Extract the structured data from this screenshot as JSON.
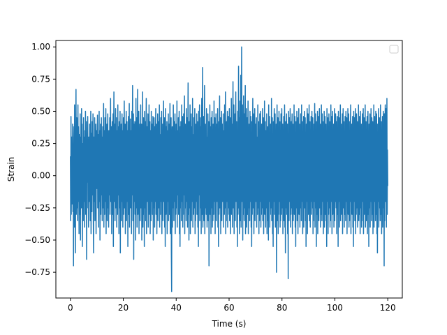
{
  "chart_data": {
    "type": "line",
    "title": "",
    "xlabel": "Time (s)",
    "ylabel": "Strain",
    "xlim": [
      -5.5,
      125.5
    ],
    "ylim": [
      -0.95,
      1.05
    ],
    "xticks": [
      0,
      20,
      40,
      60,
      80,
      100,
      120
    ],
    "yticks": [
      -0.75,
      -0.5,
      -0.25,
      0.0,
      0.25,
      0.5,
      0.75,
      1.0
    ],
    "ytick_labels": [
      "−0.75",
      "−0.50",
      "−0.25",
      "0.00",
      "0.25",
      "0.50",
      "0.75",
      "1.00"
    ],
    "grid": false,
    "legend": {
      "placement": "top-right",
      "entries": []
    },
    "series": [
      {
        "color": "#1f77b4",
        "sample_interval": 0.5,
        "x_start": 0,
        "x_end": 120,
        "y": [
          0.15,
          -0.35,
          0.46,
          -0.3,
          0.05,
          0.3,
          -0.22,
          0.12,
          0.4,
          -0.28,
          0.15,
          -0.7,
          0.25,
          0.38,
          -0.4,
          0.55,
          -0.15,
          0.2,
          -0.6,
          0.35,
          0.67,
          -0.3,
          0.22,
          0.45,
          -0.25,
          0.1,
          -0.35,
          0.55,
          -0.2,
          0.38,
          0.05,
          -0.45,
          0.32,
          0.15,
          -0.3,
          0.48,
          -0.5,
          0.2,
          0.3,
          -0.25,
          0.52,
          -0.1,
          0.4,
          -0.55,
          0.25,
          0.15,
          -0.35,
          0.45,
          -0.2,
          0.3,
          0.08,
          -0.4,
          0.35,
          -0.15,
          0.5,
          -0.3,
          0.2,
          0.42,
          -0.65,
          0.28,
          -0.05,
          0.32,
          0.46,
          -0.25,
          0.15,
          -0.4,
          0.3,
          0.05,
          -0.2,
          0.4,
          0.18,
          -0.35,
          0.25,
          0.5,
          -0.45,
          0.1,
          0.33,
          -0.28,
          0.42,
          -0.15,
          0.2,
          0.48,
          -0.3,
          -0.6,
          0.3,
          0.15,
          -0.2,
          0.45,
          -0.35,
          0.28,
          0.05,
          0.4,
          -0.45,
          0.22,
          0.35,
          -0.1,
          0.3,
          0.47,
          -0.25,
          0.12,
          0.32,
          -0.4,
          0.25,
          0.5,
          -0.2,
          0.35,
          -0.5,
          0.15,
          0.4,
          -0.3,
          0.22,
          0.45,
          -0.15,
          0.3,
          -0.35,
          0.1,
          0.38,
          -0.25,
          0.28,
          0.56,
          -0.4,
          0.18,
          0.35,
          -0.3,
          0.45,
          -0.2,
          0.15,
          0.52,
          -0.45,
          0.25,
          0.05,
          0.4,
          -0.35,
          0.3,
          0.48,
          -0.25,
          0.15,
          -0.4,
          0.35,
          0.22,
          -0.15,
          0.45,
          -0.3,
          0.28,
          0.6,
          -0.2,
          0.1,
          0.38,
          -0.45,
          0.25,
          0.42,
          -0.3,
          0.18,
          0.48,
          -0.55,
          0.3,
          0.65,
          -0.2,
          0.15,
          0.4,
          -0.35,
          0.28,
          0.52,
          -0.25,
          0.12,
          0.45,
          -0.4,
          0.35,
          0.2,
          -0.3,
          0.55,
          -0.15,
          0.38,
          0.25,
          -0.45,
          0.42,
          0.15,
          -0.25,
          0.5,
          -0.6,
          0.3,
          0.08,
          0.4,
          -0.35,
          0.22,
          0.48,
          -0.2,
          0.35,
          -0.4,
          0.15,
          0.45,
          -0.3,
          0.28,
          0.58,
          -0.25,
          0.18,
          0.4,
          -0.45,
          0.3,
          0.12,
          0.5,
          -0.35,
          0.25,
          0.42,
          -0.2,
          0.35,
          -0.55,
          0.15,
          0.46,
          -0.3,
          0.22,
          0.56,
          -0.4,
          0.28,
          0.05,
          0.44,
          -0.25,
          0.35,
          0.2,
          -0.45,
          0.5,
          -0.15,
          0.3,
          0.7,
          -0.35,
          0.25,
          0.48,
          -0.65,
          0.4,
          -0.2,
          0.15,
          0.42,
          -0.3,
          0.35,
          -0.5,
          0.6,
          -0.25,
          0.22,
          0.45,
          -0.4,
          0.18,
          0.67,
          -0.3,
          0.32,
          -0.2,
          0.5,
          -0.45,
          0.28,
          0.1,
          0.4,
          -0.35,
          0.25,
          0.55,
          -0.25,
          0.2,
          0.4,
          -0.5,
          0.35,
          -0.15,
          0.65,
          -0.4,
          0.28,
          0.45,
          -0.3,
          0.22,
          -0.55,
          0.5,
          0.15,
          -0.25,
          0.42,
          -0.35,
          0.3,
          0.6,
          -0.45,
          0.25,
          0.38,
          -0.2,
          0.15,
          0.48,
          -0.4,
          0.3,
          -0.25,
          0.55,
          -0.3,
          0.2,
          0.42,
          -0.45,
          0.35,
          0.05,
          -0.35,
          0.5,
          -0.2,
          0.25,
          0.4,
          -0.3,
          0.15,
          0.46,
          -0.5,
          0.32,
          -0.25,
          0.45,
          0.12,
          -0.4,
          0.38,
          -0.2,
          0.28,
          0.52,
          -0.3,
          0.18,
          0.4,
          -0.45,
          0.25,
          -0.15,
          0.48,
          -0.35,
          0.3,
          0.42,
          -0.25,
          0.2,
          0.55,
          -0.4,
          0.32,
          0.1,
          -0.3,
          0.45,
          -0.2,
          0.35,
          0.5,
          -0.45,
          0.22,
          -0.25,
          0.4,
          -0.35,
          0.28,
          0.58,
          -0.2,
          0.15,
          0.45,
          -0.4,
          0.3,
          -0.55,
          0.52,
          0.12,
          -0.3,
          0.38,
          -0.25,
          0.42,
          -0.45,
          0.25,
          0.35,
          -0.2,
          0.48,
          -0.35,
          0.18,
          0.4,
          -0.3,
          0.28,
          0.56,
          -0.45,
          0.22,
          -0.15,
          0.45,
          -0.6,
          -0.9,
          0.2,
          0.38,
          -0.4,
          0.3,
          -0.25,
          0.55,
          0.1,
          -0.35,
          0.42,
          -0.2,
          0.25,
          0.48,
          -0.45,
          0.32,
          -0.3,
          0.4,
          0.18,
          -0.25,
          0.58,
          -0.4,
          0.22,
          0.35,
          -0.15,
          0.45,
          -0.3,
          0.28,
          0.5,
          -0.45,
          0.2,
          -0.55,
          0.38,
          -0.25,
          0.42,
          0.12,
          -0.35,
          0.55,
          -0.2,
          0.3,
          0.46,
          -0.4,
          0.25,
          -0.3,
          0.48,
          -0.15,
          0.35,
          0.62,
          -0.45,
          0.22,
          0.4,
          -0.25,
          0.3,
          -0.35,
          0.52,
          -0.2,
          0.18,
          0.45,
          -0.4,
          0.28,
          0.72,
          -0.3,
          0.35,
          -0.5,
          0.42,
          -0.25,
          0.2,
          0.55,
          -0.45,
          0.3,
          -0.15,
          0.48,
          -0.35,
          0.25,
          0.38,
          -0.2,
          0.6,
          -0.4,
          0.32,
          0.15,
          -0.3,
          0.45,
          -0.25,
          0.28,
          0.52,
          -0.45,
          0.22,
          -0.35,
          0.4,
          0.1,
          -0.2,
          0.48,
          -0.3,
          0.35,
          0.42,
          -0.4,
          0.25,
          -0.55,
          0.5,
          -0.15,
          0.3,
          0.55,
          -0.35,
          0.2,
          0.45,
          -0.25,
          0.38,
          -0.45,
          0.28,
          0.6,
          -0.3,
          0.18,
          0.84,
          -0.4,
          0.32,
          -0.2,
          0.46,
          -0.35,
          0.25,
          0.7,
          -0.45,
          0.22,
          0.4,
          -0.25,
          0.35,
          -0.3,
          0.52,
          0.15,
          -0.4,
          0.3,
          -0.2,
          0.48,
          -0.35,
          0.28,
          0.42,
          -0.7,
          0.25,
          -0.15,
          0.55,
          -0.3,
          0.38,
          0.2,
          -0.45,
          0.45,
          -0.25,
          0.32,
          0.5,
          -0.4,
          0.22,
          -0.35,
          0.4,
          0.12,
          -0.3,
          0.58,
          -0.2,
          0.35,
          0.45,
          -0.45,
          0.28,
          -0.25,
          0.48,
          -0.35,
          0.25,
          0.4,
          -0.2,
          0.18,
          0.52,
          -0.4,
          0.3,
          -0.55,
          0.42,
          -0.3,
          0.35,
          0.62,
          -0.25,
          0.2,
          0.45,
          -0.45,
          0.32,
          -0.15,
          0.5,
          -0.35,
          0.28,
          0.4,
          -0.2,
          0.22,
          0.48,
          -0.4,
          0.35,
          0.15,
          -0.3,
          0.55,
          -0.25,
          0.3,
          0.65,
          -0.45,
          0.25,
          -0.35,
          0.42,
          -0.2,
          0.38,
          0.5,
          -0.4,
          0.18,
          -0.3,
          0.46,
          0.12,
          -0.25,
          0.52,
          -0.35,
          0.28,
          0.45,
          -0.45,
          0.32,
          -0.2,
          0.6,
          -0.3,
          0.22,
          0.4,
          -0.4,
          0.35,
          0.73,
          -0.25,
          0.25,
          0.55,
          -0.45,
          0.3,
          -0.15,
          0.48,
          -0.35,
          0.38,
          0.65,
          -0.2,
          0.2,
          0.42,
          -0.4,
          0.28,
          -0.55,
          0.5,
          -0.3,
          0.32,
          0.85,
          -0.25,
          0.45,
          -0.45,
          0.35,
          0.58,
          -0.35,
          0.22,
          0.78,
          -0.4,
          0.3,
          1.0,
          -0.2,
          0.38,
          0.55,
          -0.5,
          0.25,
          -0.3,
          0.62,
          0.15,
          -0.35,
          0.48,
          -0.25,
          0.32,
          0.7,
          -0.45,
          0.28,
          -0.2,
          0.52,
          -0.4,
          0.35,
          0.45,
          -0.3,
          0.22,
          0.58,
          -0.45,
          0.3,
          -0.25,
          0.4,
          0.18,
          -0.35,
          0.5,
          -0.2,
          0.38,
          0.46,
          -0.4,
          0.25,
          -0.55,
          0.42,
          -0.3,
          0.32,
          0.6,
          -0.25,
          0.2,
          0.48,
          -0.45,
          0.35,
          -0.15,
          0.52,
          -0.35,
          0.28,
          0.4,
          -0.2,
          0.25,
          0.45,
          -0.4,
          0.3,
          0.1,
          -0.3,
          0.55,
          -0.25,
          0.35,
          0.42,
          -0.45,
          0.22,
          -0.35,
          0.48,
          -0.2,
          0.32,
          0.5,
          -0.4,
          0.18,
          -0.3,
          0.4,
          0.15,
          -0.25,
          0.52,
          -0.35,
          0.28,
          0.45,
          -0.45,
          0.3,
          -0.2,
          0.58,
          -0.3,
          0.25,
          0.42,
          -0.4,
          0.35,
          0.12,
          -0.25,
          0.48,
          -0.45,
          0.22,
          0.38,
          -0.35,
          0.3,
          -0.5,
          0.55,
          -0.2,
          0.28,
          0.46,
          -0.4,
          0.32,
          -0.3,
          0.4,
          0.18,
          -0.25,
          0.6,
          -0.35,
          0.25,
          0.45,
          -0.45,
          0.3,
          -0.55,
          0.42,
          -0.2,
          0.35,
          0.52,
          -0.3,
          0.22,
          0.48,
          -0.4,
          0.28,
          -0.25,
          0.4,
          -0.75,
          0.15,
          0.55,
          -0.35,
          0.32,
          0.45,
          -0.45,
          0.25,
          -0.3,
          0.5,
          -0.2,
          0.38,
          0.42,
          -0.4,
          0.2,
          -0.35,
          0.48,
          0.1,
          -0.3,
          0.52,
          -0.25,
          0.3,
          0.4,
          -0.45,
          0.28,
          -0.2,
          0.46,
          -0.35,
          0.25,
          0.55,
          -0.4,
          0.32,
          -0.6,
          0.42,
          -0.25,
          0.35,
          0.48,
          -0.3,
          0.18,
          0.4,
          -0.45,
          0.3,
          -0.8,
          0.5,
          0.15,
          -0.35,
          0.45,
          -0.2,
          0.28,
          0.52,
          -0.4,
          0.25,
          -0.3,
          0.42,
          -0.25,
          0.35,
          0.48,
          -0.45,
          0.22,
          0.4,
          -0.35,
          0.3,
          -0.2,
          0.55,
          -0.3,
          0.25,
          0.46,
          -0.4,
          0.32,
          -0.55,
          0.42,
          0.12,
          -0.25,
          0.5,
          -0.35,
          0.28,
          0.45,
          -0.45,
          0.3,
          -0.2,
          0.52,
          -0.3,
          0.22,
          0.4,
          -0.4,
          0.35,
          -0.25,
          0.48,
          0.15,
          -0.35,
          0.55,
          -0.2,
          0.3,
          0.42,
          -0.45,
          0.25,
          -0.3,
          0.46,
          -0.4,
          0.32,
          0.5,
          -0.25,
          0.2,
          0.45,
          -0.35,
          0.28,
          -0.55,
          0.4,
          -0.2,
          0.35,
          0.52,
          -0.45,
          0.22,
          0.48,
          -0.3,
          0.3,
          -0.25,
          0.55,
          -0.35,
          0.25,
          0.42,
          -0.4,
          0.32,
          -0.2,
          0.46,
          0.12,
          -0.3,
          0.5,
          -0.25,
          0.28,
          0.45,
          -0.45,
          0.35,
          -0.35,
          0.4,
          -0.2,
          0.3,
          0.56,
          -0.4,
          0.22,
          0.48,
          -0.25,
          0.32,
          -0.55,
          0.42,
          -0.3,
          0.25,
          0.5,
          -0.45,
          0.28,
          -0.2,
          0.46,
          -0.35,
          0.35,
          0.52,
          -0.25,
          0.2,
          0.4,
          -0.4,
          0.3,
          -0.3,
          0.55,
          0.15,
          -0.35,
          0.48,
          -0.2,
          0.32,
          0.42,
          -0.45,
          0.25,
          -0.25,
          0.5,
          -0.4,
          0.28,
          0.46,
          -0.3,
          0.22,
          0.4,
          -0.35,
          0.35,
          -0.55,
          0.52,
          -0.2,
          0.3,
          0.45,
          -0.45,
          0.25,
          -0.3,
          0.48,
          -0.25,
          0.32,
          0.42,
          -0.4,
          0.2,
          -0.35,
          0.55,
          0.12,
          -0.2,
          0.46,
          -0.45,
          0.28,
          0.5,
          -0.3,
          0.35,
          -0.25,
          0.4,
          -0.4,
          0.25,
          0.52,
          -0.35,
          0.3,
          -0.2,
          0.48,
          0.15,
          -0.25,
          0.42,
          -0.45,
          0.32,
          0.46,
          -0.3,
          0.22,
          -0.55,
          0.5,
          -0.2,
          0.35,
          0.45,
          -0.4,
          0.28,
          -0.25,
          0.55,
          -0.35,
          0.25,
          0.4,
          -0.3,
          0.3,
          -0.2,
          0.48,
          -0.45,
          0.32,
          0.52,
          -0.25,
          0.2,
          0.42,
          -0.4,
          0.35,
          -0.3,
          0.46,
          0.1,
          -0.35,
          0.5,
          -0.2,
          0.28,
          0.45,
          -0.45,
          0.25,
          -0.25,
          0.52,
          -0.3,
          0.32,
          0.48,
          -0.4,
          0.22,
          -0.35,
          0.42,
          -0.2,
          0.35,
          0.55,
          -0.45,
          0.3,
          -0.25,
          0.4,
          -0.3,
          0.25,
          0.46,
          -0.4,
          0.28,
          -0.55,
          0.5,
          0.12,
          -0.2,
          0.45,
          -0.35,
          0.32,
          0.52,
          -0.45,
          0.22,
          -0.3,
          0.48,
          -0.25,
          0.35,
          0.42,
          -0.4,
          0.3,
          -0.2,
          0.55,
          -0.35,
          0.25,
          0.46,
          -0.3,
          0.28,
          -0.45,
          0.5,
          -0.25,
          0.2,
          0.4,
          -0.4,
          0.32,
          -0.35,
          0.48,
          0.15,
          -0.2,
          0.52,
          -0.45,
          0.3,
          0.45,
          -0.3,
          0.25,
          -0.25,
          0.55,
          -0.4,
          0.35,
          0.42,
          -0.35,
          0.22,
          -0.2,
          0.46,
          -0.45,
          0.28,
          0.5,
          -0.3,
          0.32,
          -0.55,
          0.4,
          -0.25,
          0.25,
          0.48,
          -0.4,
          0.3,
          -0.2,
          0.52,
          0.1,
          -0.35,
          0.45,
          -0.3,
          0.35,
          0.42,
          -0.45,
          0.22,
          -0.25,
          0.55,
          -0.4,
          0.28,
          0.46,
          -0.2,
          0.32,
          -0.35,
          0.5,
          -0.3,
          0.25,
          0.48,
          -0.45,
          0.3,
          -0.6,
          0.4,
          -0.2,
          0.35,
          0.52,
          -0.4,
          0.22,
          0.45,
          -0.25,
          0.28,
          -0.35,
          0.55,
          -0.3,
          0.32,
          0.42,
          -0.45,
          0.25,
          -0.2,
          0.46,
          -0.4,
          0.3,
          0.5,
          -0.25,
          0.2,
          -0.7,
          0.48,
          -0.35,
          0.35,
          0.55,
          -0.2,
          0.22,
          0.52,
          -0.4,
          0.15,
          0.6,
          -0.3,
          0.2,
          -0.08
        ]
      }
    ]
  }
}
